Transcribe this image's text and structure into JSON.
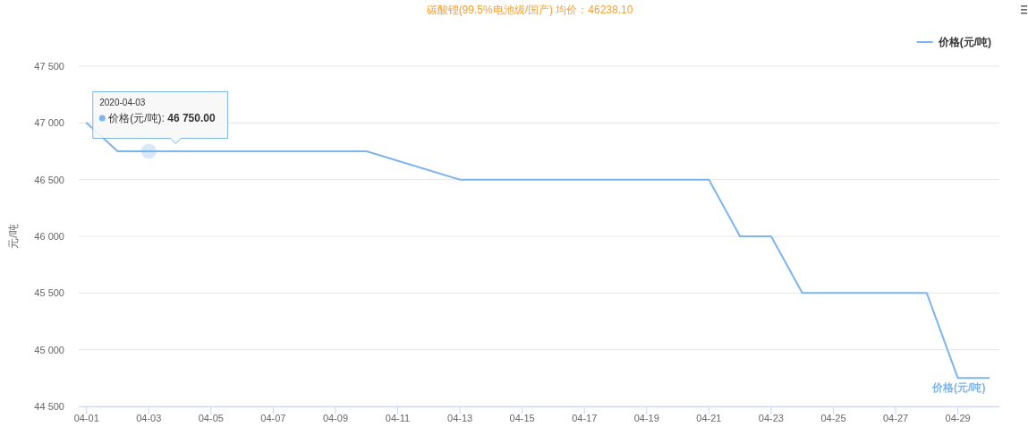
{
  "chart_data": {
    "type": "line",
    "title": "碳酸锂(99.5%电池级/国产) 均价：46238.10",
    "ylabel": "元/吨",
    "x": [
      "2020-04-01",
      "2020-04-02",
      "2020-04-03",
      "2020-04-07",
      "2020-04-08",
      "2020-04-09",
      "2020-04-10",
      "2020-04-13",
      "2020-04-14",
      "2020-04-15",
      "2020-04-16",
      "2020-04-17",
      "2020-04-20",
      "2020-04-21",
      "2020-04-22",
      "2020-04-23",
      "2020-04-24",
      "2020-04-27",
      "2020-04-28",
      "2020-04-29",
      "2020-04-30"
    ],
    "series": [
      {
        "name": "价格(元/吨)",
        "color": "#7cb5ec",
        "values": [
          47000,
          46750,
          46750,
          46750,
          46750,
          46750,
          46750,
          46500,
          46500,
          46500,
          46500,
          46500,
          46500,
          46500,
          46000,
          46000,
          45500,
          45500,
          45500,
          44750,
          44750
        ]
      }
    ],
    "xlim": [
      "2020-03-31T18:00",
      "2020-04-30T08:00"
    ],
    "xticks": [
      {
        "value": "2020-04-01",
        "label": "04-01"
      },
      {
        "value": "2020-04-03",
        "label": "04-03"
      },
      {
        "value": "2020-04-05",
        "label": "04-05"
      },
      {
        "value": "2020-04-07",
        "label": "04-07"
      },
      {
        "value": "2020-04-09",
        "label": "04-09"
      },
      {
        "value": "2020-04-11",
        "label": "04-11"
      },
      {
        "value": "2020-04-13",
        "label": "04-13"
      },
      {
        "value": "2020-04-15",
        "label": "04-15"
      },
      {
        "value": "2020-04-17",
        "label": "04-17"
      },
      {
        "value": "2020-04-19",
        "label": "04-19"
      },
      {
        "value": "2020-04-21",
        "label": "04-21"
      },
      {
        "value": "2020-04-23",
        "label": "04-23"
      },
      {
        "value": "2020-04-25",
        "label": "04-25"
      },
      {
        "value": "2020-04-27",
        "label": "04-27"
      },
      {
        "value": "2020-04-29",
        "label": "04-29"
      }
    ],
    "ylim": [
      44500,
      47500
    ],
    "yticks": [
      {
        "value": 44500,
        "label": "44 500"
      },
      {
        "value": 45000,
        "label": "45 000"
      },
      {
        "value": 45500,
        "label": "45 500"
      },
      {
        "value": 46000,
        "label": "46 000"
      },
      {
        "value": 46500,
        "label": "46 500"
      },
      {
        "value": 47000,
        "label": "47 000"
      },
      {
        "value": 47500,
        "label": "47 500"
      }
    ],
    "grid": "y",
    "legend": "top right",
    "annotations": [
      "2020-04-03",
      {
        "text": "价格(元/吨): 46 750.00",
        "x": "2020-04-03",
        "y": 46750
      }
    ]
  }
}
